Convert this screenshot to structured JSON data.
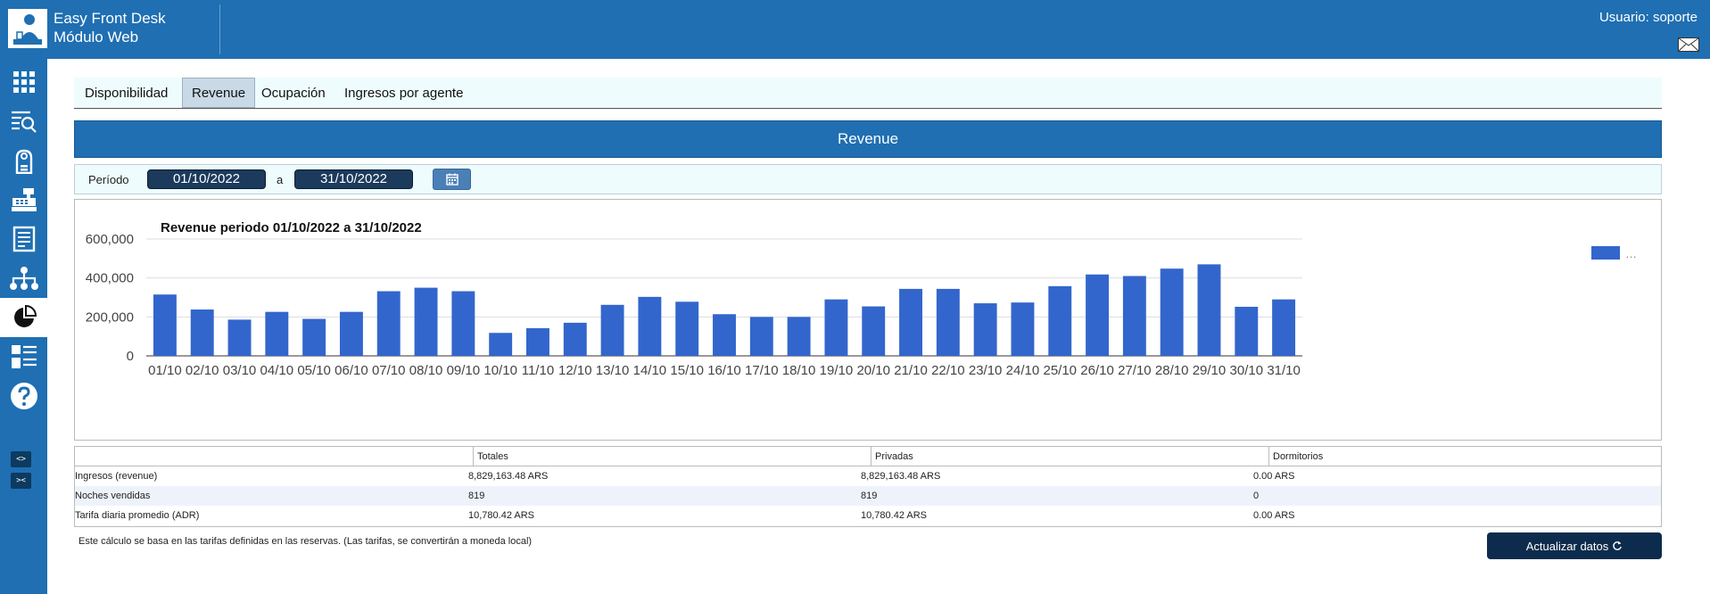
{
  "app": {
    "name_line1": "Easy Front Desk",
    "name_line2": "Módulo Web",
    "user_label": "Usuario: soporte"
  },
  "sidebar": {
    "icons": [
      "apps-grid-icon",
      "search-list-icon",
      "door-hanger-icon",
      "cash-register-icon",
      "document-icon",
      "org-chart-icon",
      "pie-chart-icon",
      "list-icon",
      "help-icon"
    ],
    "expand_label": "<>",
    "collapse_label": "><"
  },
  "tabs": [
    {
      "label": "Disponibilidad",
      "active": false
    },
    {
      "label": "Revenue",
      "active": true
    },
    {
      "label": "Ocupación",
      "active": false
    },
    {
      "label": "Ingresos por agente",
      "active": false
    }
  ],
  "banner_title": "Revenue",
  "period": {
    "label": "Período",
    "from": "01/10/2022",
    "separator": "a",
    "to": "31/10/2022"
  },
  "chart_data": {
    "type": "bar",
    "title": "Revenue periodo 01/10/2022 a 31/10/2022",
    "categories": [
      "01/10",
      "02/10",
      "03/10",
      "04/10",
      "05/10",
      "06/10",
      "07/10",
      "08/10",
      "09/10",
      "10/10",
      "11/10",
      "12/10",
      "13/10",
      "14/10",
      "15/10",
      "16/10",
      "17/10",
      "18/10",
      "19/10",
      "20/10",
      "21/10",
      "22/10",
      "23/10",
      "24/10",
      "25/10",
      "26/10",
      "27/10",
      "28/10",
      "29/10",
      "30/10",
      "31/10"
    ],
    "series": [
      {
        "values": [
          315000,
          238000,
          186000,
          226000,
          190000,
          226000,
          332000,
          350000,
          332000,
          118000,
          142000,
          170000,
          262000,
          303000,
          278000,
          214000,
          200000,
          200000,
          290000,
          254000,
          344000,
          344000,
          270000,
          274000,
          358000,
          418000,
          410000,
          448000,
          470000,
          252000,
          290000
        ]
      }
    ],
    "ylim": [
      0,
      600000
    ],
    "yticks": [
      "0",
      "200,000",
      "400,000",
      "600,000"
    ],
    "ytick_values": [
      0,
      200000,
      400000,
      600000
    ],
    "legend_text": "…",
    "legend_position": "top-right",
    "bar_color": "#3366cc",
    "grid": true
  },
  "table": {
    "headers": [
      "",
      "Totales",
      "Privadas",
      "Dormitorios"
    ],
    "rows": [
      {
        "label": "Ingresos (revenue)",
        "totales": "8,829,163.48 ARS",
        "privadas": "8,829,163.48 ARS",
        "dormitorios": "0.00 ARS"
      },
      {
        "label": "Noches vendidas",
        "totales": "819",
        "privadas": "819",
        "dormitorios": "0"
      },
      {
        "label": "Tarifa diaria promedio (ADR)",
        "totales": "10,780.42 ARS",
        "privadas": "10,780.42 ARS",
        "dormitorios": "0.00 ARS"
      }
    ]
  },
  "note": "Este cálculo se basa en las tarifas definidas en las reservas. (Las tarifas, se convertirán a moneda local)",
  "refresh_label": "Actualizar datos",
  "colors": {
    "primary": "#1f6fb2",
    "dark": "#0d2c4d",
    "light_bg": "#eefcfd"
  }
}
